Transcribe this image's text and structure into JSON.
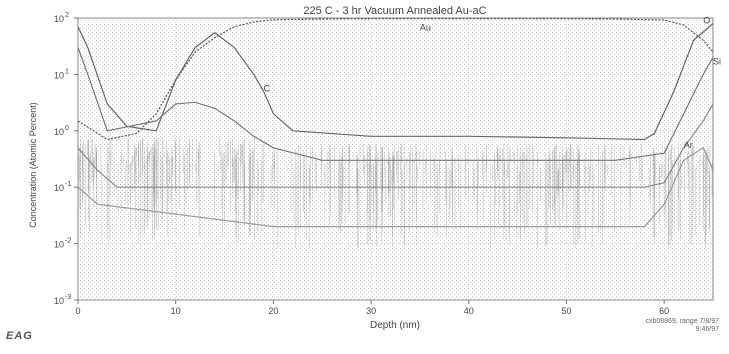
{
  "chart_data": {
    "type": "line",
    "title": "225 C - 3 hr Vacuum Annealed Au-aC",
    "xlabel": "Depth (nm)",
    "ylabel": "Concentration (Atomic Percent)",
    "xlim": [
      0,
      65
    ],
    "ylim_log10": [
      -3,
      2
    ],
    "y_scale": "log",
    "x_ticks": [
      "0",
      "10",
      "20",
      "30",
      "40",
      "50",
      "60"
    ],
    "x_tick_values": [
      0,
      10,
      20,
      30,
      40,
      50,
      60
    ],
    "y_ticks": [
      "10",
      "10",
      "10",
      "10",
      "10",
      "10"
    ],
    "y_tick_exponents": [
      "-3",
      "-2",
      "-1",
      "0",
      "1",
      "2"
    ],
    "grid": true,
    "series": [
      {
        "name": "Au",
        "color": "#555555",
        "points": [
          [
            0,
            1.5
          ],
          [
            3,
            0.7
          ],
          [
            6,
            0.9
          ],
          [
            8,
            2
          ],
          [
            10,
            8
          ],
          [
            12,
            25
          ],
          [
            14,
            45
          ],
          [
            16,
            70
          ],
          [
            18,
            85
          ],
          [
            20,
            93
          ],
          [
            25,
            96
          ],
          [
            30,
            97
          ],
          [
            40,
            97
          ],
          [
            50,
            97
          ],
          [
            55,
            96
          ],
          [
            60,
            92
          ],
          [
            62,
            75
          ],
          [
            64,
            40
          ],
          [
            65,
            25
          ]
        ]
      },
      {
        "name": "C",
        "color": "#666666",
        "points": [
          [
            0,
            70
          ],
          [
            1,
            30
          ],
          [
            3,
            3
          ],
          [
            5,
            1.2
          ],
          [
            8,
            1.0
          ],
          [
            10,
            8
          ],
          [
            12,
            30
          ],
          [
            14,
            55
          ],
          [
            16,
            30
          ],
          [
            18,
            10
          ],
          [
            19,
            5
          ],
          [
            20,
            2
          ],
          [
            22,
            1.0
          ],
          [
            30,
            0.8
          ],
          [
            40,
            0.8
          ],
          [
            50,
            0.75
          ],
          [
            58,
            0.7
          ],
          [
            59,
            0.9
          ],
          [
            61,
            5
          ],
          [
            63,
            40
          ],
          [
            65,
            80
          ]
        ]
      },
      {
        "name": "O",
        "color": "#777777",
        "points": [
          [
            0,
            30
          ],
          [
            1,
            10
          ],
          [
            3,
            1.0
          ],
          [
            8,
            1.5
          ],
          [
            10,
            3
          ],
          [
            12,
            3.2
          ],
          [
            14,
            2.5
          ],
          [
            16,
            1.5
          ],
          [
            18,
            0.8
          ],
          [
            20,
            0.5
          ],
          [
            25,
            0.3
          ],
          [
            40,
            0.3
          ],
          [
            55,
            0.3
          ],
          [
            60,
            0.4
          ],
          [
            62,
            2
          ],
          [
            64,
            10
          ],
          [
            65,
            20
          ]
        ]
      },
      {
        "name": "Si",
        "color": "#888888",
        "points": [
          [
            0,
            0.5
          ],
          [
            2,
            0.2
          ],
          [
            4,
            0.1
          ],
          [
            58,
            0.1
          ],
          [
            60,
            0.12
          ],
          [
            62,
            0.5
          ],
          [
            64,
            1.5
          ],
          [
            65,
            3
          ]
        ]
      },
      {
        "name": "Ar",
        "color": "#999999",
        "points": [
          [
            0,
            0.1
          ],
          [
            2,
            0.05
          ],
          [
            20,
            0.02
          ],
          [
            40,
            0.02
          ],
          [
            58,
            0.02
          ],
          [
            60,
            0.05
          ],
          [
            62,
            0.3
          ],
          [
            64,
            0.5
          ],
          [
            65,
            0.2
          ]
        ]
      }
    ],
    "annotations": [
      {
        "text": "Au",
        "x": 35,
        "y": 60
      },
      {
        "text": "C",
        "x": 19,
        "y": 5
      },
      {
        "text": "O",
        "x": 64,
        "y": 80
      },
      {
        "text": "Si",
        "x": 65,
        "y": 15
      },
      {
        "text": "Ar",
        "x": 62,
        "y": 0.5
      }
    ]
  },
  "logo_text": "EAG",
  "footnote_line1": "cxb08869, range 7/8/97",
  "footnote_line2": "9:46/97"
}
